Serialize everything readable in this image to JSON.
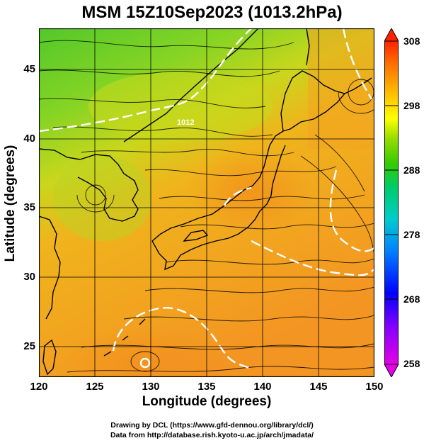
{
  "title": "MSM 15Z10Sep2023 (1013.2hPa)",
  "axes": {
    "xlabel": "Longitude (degrees)",
    "ylabel": "Latitude  (degrees)",
    "x_ticks": [
      "120",
      "125",
      "130",
      "135",
      "140",
      "145",
      "150"
    ],
    "y_ticks": [
      "45",
      "40",
      "35",
      "30",
      "25"
    ]
  },
  "colorbar": {
    "ticks": [
      "308",
      "298",
      "288",
      "278",
      "268",
      "258"
    ],
    "min": 258,
    "max": 308,
    "colors": [
      "#e600e6",
      "#8000ff",
      "#0000ff",
      "#0080ff",
      "#00cccc",
      "#00cc66",
      "#33cc00",
      "#99dd00",
      "#ffff00",
      "#ffcc00",
      "#ff9900",
      "#ff6600",
      "#ff2200"
    ]
  },
  "map": {
    "type": "streamline-temperature",
    "lon_range": [
      120,
      150
    ],
    "lat_range": [
      22.4,
      47.6
    ],
    "contour_label": "1012",
    "fill_colors": {
      "warm": "#f59a20",
      "mid": "#c9d820",
      "cool": "#4cc82a"
    }
  },
  "credits": {
    "line1": "Drawing by DCL (https://www.gfd-dennou.org/library/dcl/)",
    "line2": "Data from http://database.rish.kyoto-u.ac.jp/arch/jmadata/"
  }
}
